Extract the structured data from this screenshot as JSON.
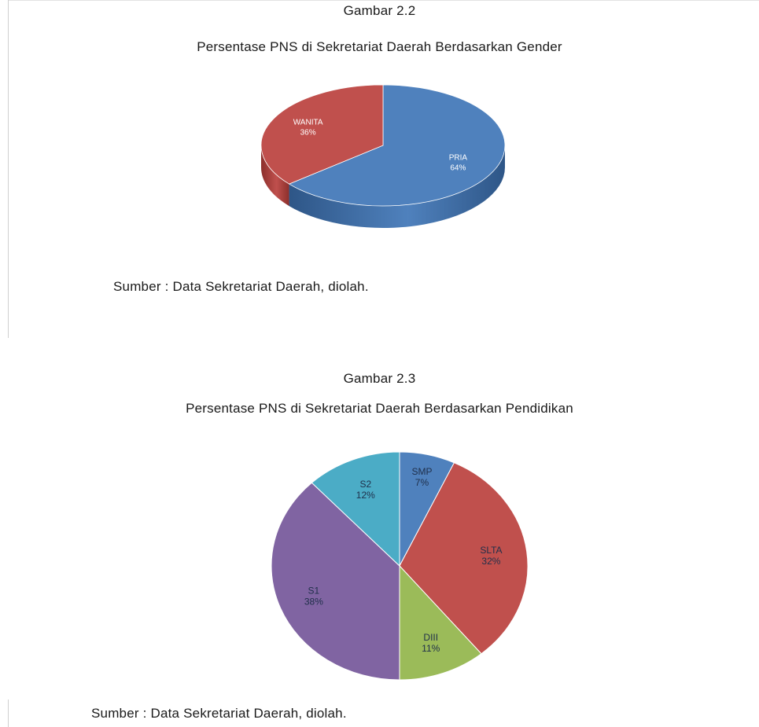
{
  "figures": [
    {
      "caption_number": "Gambar 2.2",
      "caption_title": "Persentase PNS di Sekretariat Daerah Berdasarkan Gender",
      "source": "Sumber : Data Sekretariat Daerah, diolah."
    },
    {
      "caption_number": "Gambar 2.3",
      "caption_title": "Persentase PNS di Sekretariat Daerah Berdasarkan Pendidikan",
      "source": "Sumber : Data Sekretariat Daerah, diolah."
    }
  ],
  "chart_data": [
    {
      "type": "pie",
      "style": "3d",
      "title": "Persentase PNS di Sekretariat Daerah Berdasarkan Gender",
      "slices": [
        {
          "label": "PRIA",
          "value": 64,
          "value_label": "64%",
          "color": "#4f81bd",
          "side_color": "#2e5687"
        },
        {
          "label": "WANITA",
          "value": 36,
          "value_label": "36%",
          "color": "#c0504d",
          "side_color": "#8c2f2c"
        }
      ]
    },
    {
      "type": "pie",
      "title": "Persentase PNS di Sekretariat Daerah Berdasarkan Pendidikan",
      "slices": [
        {
          "label": "SMP",
          "value": 7,
          "value_label": "7%",
          "color": "#4f81bd"
        },
        {
          "label": "SLTA",
          "value": 32,
          "value_label": "32%",
          "color": "#c0504d"
        },
        {
          "label": "DIII",
          "value": 11,
          "value_label": "11%",
          "color": "#9bbb59"
        },
        {
          "label": "S1",
          "value": 38,
          "value_label": "38%",
          "color": "#8064a2"
        },
        {
          "label": "S2",
          "value": 12,
          "value_label": "12%",
          "color": "#4bacc6"
        }
      ]
    }
  ]
}
